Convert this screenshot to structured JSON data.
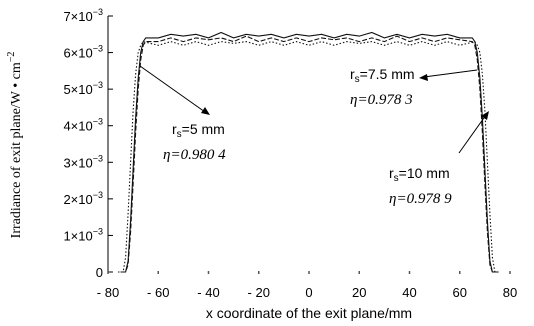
{
  "chart_data": {
    "type": "line",
    "title": "",
    "xlabel": "x coordinate of the exit plane/mm",
    "ylabel": "Irradiance of exit plane/W • cm",
    "ylabel_sup": "−2",
    "xlim": [
      -80,
      80
    ],
    "ylim": [
      0,
      0.007
    ],
    "x_ticks": [
      -80,
      -60,
      -40,
      -20,
      0,
      20,
      40,
      60,
      80
    ],
    "x_tick_labels": [
      "- 80",
      "- 60",
      "- 40",
      "- 20",
      "0",
      "20",
      "40",
      "60",
      "80"
    ],
    "y_ticks": [
      0,
      0.001,
      0.002,
      0.003,
      0.004,
      0.005,
      0.006,
      0.007
    ],
    "y_tick_labels": [
      {
        "mantissa": "0",
        "exp": ""
      },
      {
        "mantissa": "1×10",
        "exp": "−3"
      },
      {
        "mantissa": "2×10",
        "exp": "−3"
      },
      {
        "mantissa": "3×10",
        "exp": "−3"
      },
      {
        "mantissa": "4×10",
        "exp": "−3"
      },
      {
        "mantissa": "5×10",
        "exp": "−3"
      },
      {
        "mantissa": "6×10",
        "exp": "−3"
      },
      {
        "mantissa": "7×10",
        "exp": "−3"
      }
    ],
    "grid": false,
    "series": [
      {
        "style": "solid",
        "x": [
          -75,
          -73,
          -72,
          -71,
          -70,
          -69,
          -68,
          -67,
          -66,
          -65,
          -60,
          -55,
          -50,
          -45,
          -40,
          -35,
          -30,
          -25,
          -20,
          -15,
          -10,
          -5,
          0,
          5,
          10,
          15,
          20,
          25,
          30,
          35,
          40,
          45,
          50,
          55,
          60,
          65,
          66,
          67,
          68,
          69,
          70,
          71,
          72,
          73,
          75
        ],
        "y": [
          0,
          0,
          0.0003,
          0.0014,
          0.0028,
          0.0042,
          0.0053,
          0.006,
          0.0063,
          0.0064,
          0.0064,
          0.0065,
          0.00645,
          0.0065,
          0.0064,
          0.00655,
          0.0064,
          0.0065,
          0.00645,
          0.0065,
          0.0064,
          0.0065,
          0.00645,
          0.0065,
          0.0064,
          0.0065,
          0.00645,
          0.00655,
          0.0064,
          0.0065,
          0.0064,
          0.0065,
          0.00645,
          0.0065,
          0.0064,
          0.0064,
          0.0063,
          0.006,
          0.0053,
          0.0042,
          0.0028,
          0.0014,
          0.0003,
          0,
          0
        ]
      },
      {
        "style": "dashed",
        "x": [
          -75,
          -73,
          -72,
          -71,
          -70,
          -69,
          -68,
          -67,
          -66,
          -65,
          -60,
          -55,
          -50,
          -45,
          -40,
          -35,
          -30,
          -25,
          -20,
          -15,
          -10,
          -5,
          0,
          5,
          10,
          15,
          20,
          25,
          30,
          35,
          40,
          45,
          50,
          55,
          60,
          65,
          66,
          67,
          68,
          69,
          70,
          71,
          72,
          73,
          75
        ],
        "y": [
          0,
          0,
          0.0002,
          0.0011,
          0.0024,
          0.0038,
          0.005,
          0.0058,
          0.0062,
          0.0063,
          0.0063,
          0.0064,
          0.0063,
          0.0064,
          0.00635,
          0.0064,
          0.0063,
          0.00645,
          0.0063,
          0.0064,
          0.0063,
          0.0064,
          0.0063,
          0.0064,
          0.00635,
          0.0064,
          0.0063,
          0.0064,
          0.0063,
          0.00645,
          0.0063,
          0.0064,
          0.0063,
          0.0064,
          0.00635,
          0.0063,
          0.0062,
          0.0058,
          0.005,
          0.0038,
          0.0024,
          0.0011,
          0.0002,
          0,
          0
        ]
      },
      {
        "style": "dotted",
        "x": [
          -76,
          -74,
          -73,
          -72,
          -71,
          -70,
          -69,
          -68,
          -67,
          -66,
          -60,
          -55,
          -50,
          -45,
          -40,
          -35,
          -30,
          -25,
          -20,
          -15,
          -10,
          -5,
          0,
          5,
          10,
          15,
          20,
          25,
          30,
          35,
          40,
          45,
          50,
          55,
          60,
          66,
          67,
          68,
          69,
          70,
          71,
          72,
          73,
          74,
          76
        ],
        "y": [
          0,
          0,
          0.0004,
          0.0016,
          0.003,
          0.0044,
          0.0054,
          0.006,
          0.0062,
          0.0063,
          0.0062,
          0.0063,
          0.0062,
          0.0063,
          0.0062,
          0.0063,
          0.00625,
          0.0063,
          0.0062,
          0.0063,
          0.0062,
          0.0063,
          0.0062,
          0.0063,
          0.0062,
          0.0063,
          0.00625,
          0.0063,
          0.0062,
          0.0063,
          0.0062,
          0.0063,
          0.0062,
          0.0063,
          0.0062,
          0.0063,
          0.0062,
          0.006,
          0.0054,
          0.0044,
          0.003,
          0.0016,
          0.0004,
          0,
          0
        ]
      }
    ],
    "annotations": [
      {
        "label": "r",
        "sub": "s",
        "value": "=5 mm",
        "eta": "η=0.980 4"
      },
      {
        "label": "r",
        "sub": "s",
        "value": "=7.5 mm",
        "eta": "η=0.978 3"
      },
      {
        "label": "r",
        "sub": "s",
        "value": "=10 mm",
        "eta": "η=0.978 9"
      }
    ]
  }
}
